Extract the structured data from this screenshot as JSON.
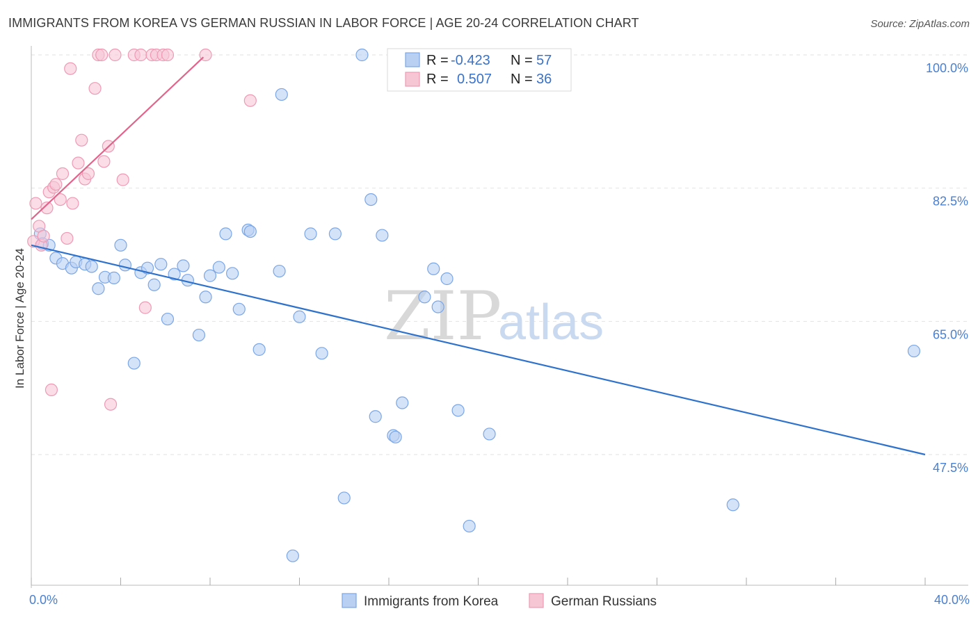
{
  "chart_data": {
    "type": "scatter",
    "title": "IMMIGRANTS FROM KOREA VS GERMAN RUSSIAN IN LABOR FORCE | AGE 20-24 CORRELATION CHART",
    "source": "Source: ZipAtlas.com",
    "xlabel": "",
    "ylabel": "In Labor Force | Age 20-24",
    "xlim": [
      0,
      40
    ],
    "ylim": [
      32,
      101.5
    ],
    "x_tick_labels": [
      {
        "value": 0,
        "label": "0.0%"
      },
      {
        "value": 40,
        "label": "40.0%"
      }
    ],
    "y_tick_labels": [
      {
        "value": 100,
        "label": "100.0%"
      },
      {
        "value": 82.5,
        "label": "82.5%"
      },
      {
        "value": 65,
        "label": "65.0%"
      },
      {
        "value": 47.5,
        "label": "47.5%"
      }
    ],
    "x_minor_ticks": [
      0,
      4,
      8,
      12,
      16,
      20,
      24,
      28,
      32,
      36,
      40
    ],
    "grid": true,
    "legend": {
      "placement": "top-center",
      "r_label": "R =",
      "n_label": "N =",
      "entries": [
        {
          "name": "Immigrants from Korea",
          "r": "-0.423",
          "n": "57"
        },
        {
          "name": "German Russians",
          "r": "0.507",
          "n": "36"
        }
      ]
    },
    "watermark": {
      "zip": "ZIP",
      "atlas": "atlas"
    },
    "series": [
      {
        "name": "Immigrants from Korea",
        "color": "#7aa6e6",
        "fill": "#b9d0f3",
        "line_color": "#2f72cc",
        "trend": {
          "x": [
            0,
            40
          ],
          "y": [
            75.0,
            47.5
          ]
        },
        "points": [
          {
            "x": 0.4,
            "y": 76.5
          },
          {
            "x": 0.5,
            "y": 75.2
          },
          {
            "x": 0.8,
            "y": 75.0
          },
          {
            "x": 1.1,
            "y": 73.3
          },
          {
            "x": 1.4,
            "y": 72.6
          },
          {
            "x": 1.8,
            "y": 72.0
          },
          {
            "x": 2.0,
            "y": 72.8
          },
          {
            "x": 2.4,
            "y": 72.5
          },
          {
            "x": 2.7,
            "y": 72.2
          },
          {
            "x": 3.0,
            "y": 69.3
          },
          {
            "x": 3.3,
            "y": 70.8
          },
          {
            "x": 3.7,
            "y": 70.7
          },
          {
            "x": 4.0,
            "y": 75.0
          },
          {
            "x": 4.2,
            "y": 72.4
          },
          {
            "x": 4.6,
            "y": 59.5
          },
          {
            "x": 4.9,
            "y": 71.4
          },
          {
            "x": 5.2,
            "y": 72.0
          },
          {
            "x": 5.5,
            "y": 69.8
          },
          {
            "x": 5.8,
            "y": 72.5
          },
          {
            "x": 6.1,
            "y": 65.3
          },
          {
            "x": 6.4,
            "y": 71.2
          },
          {
            "x": 6.8,
            "y": 72.3
          },
          {
            "x": 7.0,
            "y": 70.4
          },
          {
            "x": 7.5,
            "y": 63.2
          },
          {
            "x": 7.8,
            "y": 68.2
          },
          {
            "x": 8.0,
            "y": 71.0
          },
          {
            "x": 8.4,
            "y": 72.1
          },
          {
            "x": 8.7,
            "y": 76.5
          },
          {
            "x": 9.0,
            "y": 71.3
          },
          {
            "x": 9.3,
            "y": 66.6
          },
          {
            "x": 9.7,
            "y": 77.0
          },
          {
            "x": 9.8,
            "y": 76.8
          },
          {
            "x": 10.2,
            "y": 61.3
          },
          {
            "x": 11.1,
            "y": 71.6
          },
          {
            "x": 11.2,
            "y": 94.8
          },
          {
            "x": 11.7,
            "y": 34.2
          },
          {
            "x": 12.0,
            "y": 65.6
          },
          {
            "x": 12.5,
            "y": 76.5
          },
          {
            "x": 13.0,
            "y": 60.8
          },
          {
            "x": 13.6,
            "y": 76.5
          },
          {
            "x": 14.0,
            "y": 41.8
          },
          {
            "x": 14.8,
            "y": 100.0
          },
          {
            "x": 15.2,
            "y": 81.0
          },
          {
            "x": 15.4,
            "y": 52.5
          },
          {
            "x": 15.7,
            "y": 76.3
          },
          {
            "x": 16.2,
            "y": 50.0
          },
          {
            "x": 16.3,
            "y": 49.8
          },
          {
            "x": 16.6,
            "y": 54.3
          },
          {
            "x": 17.6,
            "y": 68.2
          },
          {
            "x": 18.0,
            "y": 71.9
          },
          {
            "x": 18.2,
            "y": 66.9
          },
          {
            "x": 18.6,
            "y": 70.6
          },
          {
            "x": 19.1,
            "y": 53.3
          },
          {
            "x": 19.6,
            "y": 38.1
          },
          {
            "x": 20.5,
            "y": 50.2
          },
          {
            "x": 31.4,
            "y": 40.9
          },
          {
            "x": 39.5,
            "y": 61.1
          }
        ]
      },
      {
        "name": "German Russians",
        "color": "#ee9ab5",
        "fill": "#f7c6d5",
        "line_color": "#e0648c",
        "trend": {
          "x": [
            0,
            7.7
          ],
          "y": [
            78.4,
            99.7
          ]
        },
        "points": [
          {
            "x": 0.1,
            "y": 75.5
          },
          {
            "x": 0.2,
            "y": 80.5
          },
          {
            "x": 0.35,
            "y": 77.5
          },
          {
            "x": 0.45,
            "y": 75.0
          },
          {
            "x": 0.55,
            "y": 76.2
          },
          {
            "x": 0.7,
            "y": 79.9
          },
          {
            "x": 0.8,
            "y": 82.0
          },
          {
            "x": 0.9,
            "y": 56.0
          },
          {
            "x": 1.0,
            "y": 82.6
          },
          {
            "x": 1.1,
            "y": 83.0
          },
          {
            "x": 1.3,
            "y": 81.0
          },
          {
            "x": 1.4,
            "y": 84.4
          },
          {
            "x": 1.6,
            "y": 75.9
          },
          {
            "x": 1.75,
            "y": 98.2
          },
          {
            "x": 1.85,
            "y": 80.5
          },
          {
            "x": 2.1,
            "y": 85.8
          },
          {
            "x": 2.25,
            "y": 88.8
          },
          {
            "x": 2.4,
            "y": 83.7
          },
          {
            "x": 2.55,
            "y": 84.4
          },
          {
            "x": 2.85,
            "y": 95.6
          },
          {
            "x": 3.0,
            "y": 100.0
          },
          {
            "x": 3.15,
            "y": 100.0
          },
          {
            "x": 3.25,
            "y": 86.0
          },
          {
            "x": 3.45,
            "y": 88.0
          },
          {
            "x": 3.55,
            "y": 54.1
          },
          {
            "x": 3.75,
            "y": 100.0
          },
          {
            "x": 4.1,
            "y": 83.6
          },
          {
            "x": 4.6,
            "y": 100.0
          },
          {
            "x": 4.9,
            "y": 100.0
          },
          {
            "x": 5.1,
            "y": 66.8
          },
          {
            "x": 5.4,
            "y": 100.0
          },
          {
            "x": 5.6,
            "y": 100.0
          },
          {
            "x": 5.9,
            "y": 100.0
          },
          {
            "x": 6.1,
            "y": 100.0
          },
          {
            "x": 7.8,
            "y": 100.0
          },
          {
            "x": 9.8,
            "y": 94.0
          }
        ]
      }
    ]
  }
}
